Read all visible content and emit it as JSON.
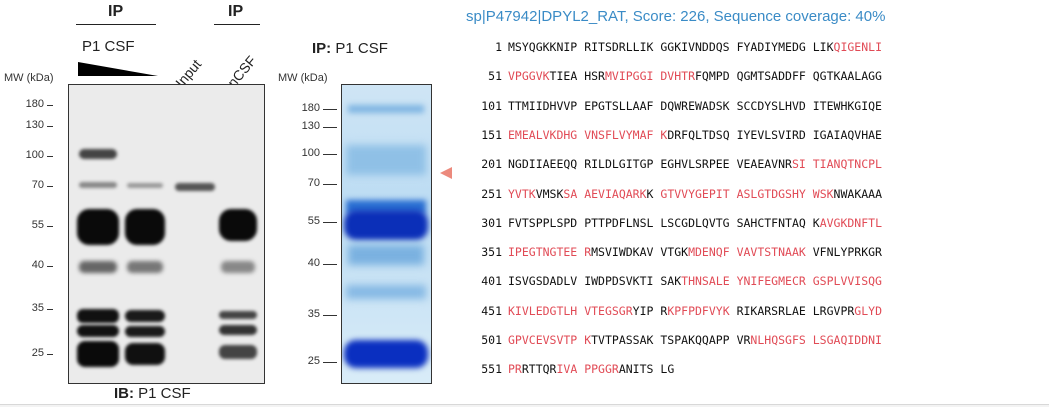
{
  "blot": {
    "header_ip": "IP",
    "header_ip2": "IP",
    "sample_label": "P1 CSF",
    "input_label": "Input",
    "ncsf_label": "nCSF",
    "mw_label": "MW (kDa)",
    "ib_prefix": "IB:",
    "ib_label": "P1 CSF",
    "mw_markers": [
      "180",
      "130",
      "100",
      "70",
      "55",
      "40",
      "35",
      "25"
    ]
  },
  "gel": {
    "ip_prefix": "IP:",
    "ip_label": "P1 CSF",
    "mw_label": "MW (kDa)",
    "mw_markers": [
      "180",
      "130",
      "100",
      "70",
      "55",
      "40",
      "35",
      "25"
    ]
  },
  "mascot": {
    "hit_title": "sp|P47942|DPYL2_RAT, Score: 226, Sequence coverage: 40%",
    "accent": "#3a8bc6",
    "match_color": "#e14b56",
    "lines": [
      {
        "num": "1",
        "groups": [
          [
            {
              "t": "MSYQGKKNIP",
              "r": false
            }
          ],
          [
            {
              "t": "RITSDRLLIK",
              "r": false
            }
          ],
          [
            {
              "t": "GGKIVNDDQS",
              "r": false
            }
          ],
          [
            {
              "t": "FYADIYMEDG",
              "r": false
            }
          ],
          [
            {
              "t": "LIK",
              "r": false
            },
            {
              "t": "QIGENLI",
              "r": true
            }
          ]
        ]
      },
      {
        "num": "51",
        "groups": [
          [
            {
              "t": "VPGGVK",
              "r": true
            },
            {
              "t": "TIEA",
              "r": false
            }
          ],
          [
            {
              "t": "HSR",
              "r": false
            },
            {
              "t": "MVIPGGI",
              "r": true
            }
          ],
          [
            {
              "t": "DVHTR",
              "r": true
            },
            {
              "t": "FQMPD",
              "r": false
            }
          ],
          [
            {
              "t": "QGMTSADDFF",
              "r": false
            }
          ],
          [
            {
              "t": "QGTKAALAGG",
              "r": false
            }
          ]
        ]
      },
      {
        "num": "101",
        "groups": [
          [
            {
              "t": "TTMIIDHVVP",
              "r": false
            }
          ],
          [
            {
              "t": "EPGTSLLAAF",
              "r": false
            }
          ],
          [
            {
              "t": "DQWREWADSK",
              "r": false
            }
          ],
          [
            {
              "t": "SCCDYSLHVD",
              "r": false
            }
          ],
          [
            {
              "t": "ITEWHKGIQE",
              "r": false
            }
          ]
        ]
      },
      {
        "num": "151",
        "groups": [
          [
            {
              "t": "EMEALVKDHG",
              "r": true
            }
          ],
          [
            {
              "t": "VNSFLVYMAF",
              "r": true
            }
          ],
          [
            {
              "t": "K",
              "r": true
            },
            {
              "t": "DRFQLTDSQ",
              "r": false
            }
          ],
          [
            {
              "t": "IYEVLSVIRD",
              "r": false
            }
          ],
          [
            {
              "t": "IGAIAQVHAE",
              "r": false
            }
          ]
        ]
      },
      {
        "num": "201",
        "groups": [
          [
            {
              "t": "NGDIIAEEQQ",
              "r": false
            }
          ],
          [
            {
              "t": "RILDLGITGP",
              "r": false
            }
          ],
          [
            {
              "t": "EGHVLSRPEE",
              "r": false
            }
          ],
          [
            {
              "t": "VEAEAVNR",
              "r": false
            },
            {
              "t": "SI",
              "r": true
            }
          ],
          [
            {
              "t": "TIANQTNCPL",
              "r": true
            }
          ]
        ]
      },
      {
        "num": "251",
        "groups": [
          [
            {
              "t": "YVTK",
              "r": true
            },
            {
              "t": "VMSK",
              "r": false
            },
            {
              "t": "SA",
              "r": true
            }
          ],
          [
            {
              "t": "AEVIAQARK",
              "r": true
            },
            {
              "t": "K",
              "r": false
            }
          ],
          [
            {
              "t": "GTVVYGEPIT",
              "r": true
            }
          ],
          [
            {
              "t": "ASLGTDGSHY",
              "r": true
            }
          ],
          [
            {
              "t": "WSK",
              "r": true
            },
            {
              "t": "NWAKAAA",
              "r": false
            }
          ]
        ]
      },
      {
        "num": "301",
        "groups": [
          [
            {
              "t": "FVTSPPLSPD",
              "r": false
            }
          ],
          [
            {
              "t": "PTTPDFLNSL",
              "r": false
            }
          ],
          [
            {
              "t": "LSCGDLQVTG",
              "r": false
            }
          ],
          [
            {
              "t": "SAHCTFNTAQ",
              "r": false
            }
          ],
          [
            {
              "t": "K",
              "r": false
            },
            {
              "t": "AVGKDNFTL",
              "r": true
            }
          ]
        ]
      },
      {
        "num": "351",
        "groups": [
          [
            {
              "t": "IPEGTNGTEE",
              "r": true
            }
          ],
          [
            {
              "t": "R",
              "r": true
            },
            {
              "t": "MSVIWDKAV",
              "r": false
            }
          ],
          [
            {
              "t": "VTGK",
              "r": false
            },
            {
              "t": "MDENQF",
              "r": true
            }
          ],
          [
            {
              "t": "VAVTSTNAAK",
              "r": true
            }
          ],
          [
            {
              "t": "VFNLYPRKGR",
              "r": false
            }
          ]
        ]
      },
      {
        "num": "401",
        "groups": [
          [
            {
              "t": "ISVGSDADLV",
              "r": false
            }
          ],
          [
            {
              "t": "IWDPDSVKTI",
              "r": false
            }
          ],
          [
            {
              "t": "SAK",
              "r": false
            },
            {
              "t": "THNSALE",
              "r": true
            }
          ],
          [
            {
              "t": "YNIFEGMECR",
              "r": true
            }
          ],
          [
            {
              "t": "GSPLVVISQG",
              "r": true
            }
          ]
        ]
      },
      {
        "num": "451",
        "groups": [
          [
            {
              "t": "KIVLEDGTLH",
              "r": true
            }
          ],
          [
            {
              "t": "VTEGSGR",
              "r": true
            },
            {
              "t": "YIP",
              "r": false
            }
          ],
          [
            {
              "t": "R",
              "r": false
            },
            {
              "t": "KPFPDFVYK",
              "r": true
            }
          ],
          [
            {
              "t": "RIKARSRLAE",
              "r": false
            }
          ],
          [
            {
              "t": "LRGVPR",
              "r": false
            },
            {
              "t": "GLYD",
              "r": true
            }
          ]
        ]
      },
      {
        "num": "501",
        "groups": [
          [
            {
              "t": "GPVCEVSVTP",
              "r": true
            }
          ],
          [
            {
              "t": "K",
              "r": true
            },
            {
              "t": "TVTPASSAK",
              "r": false
            }
          ],
          [
            {
              "t": "TSPAKQQAPP",
              "r": false
            }
          ],
          [
            {
              "t": "VR",
              "r": false
            },
            {
              "t": "NLHQSGFS",
              "r": true
            }
          ],
          [
            {
              "t": "LSGAQIDDNI",
              "r": true
            }
          ]
        ]
      },
      {
        "num": "551",
        "groups": [
          [
            {
              "t": "PR",
              "r": true
            },
            {
              "t": "RTTQR",
              "r": false
            },
            {
              "t": "IVA",
              "r": true
            }
          ],
          [
            {
              "t": "PPGGR",
              "r": true
            },
            {
              "t": "ANITS",
              "r": false
            }
          ],
          [
            {
              "t": "LG",
              "r": false
            }
          ]
        ]
      }
    ]
  }
}
